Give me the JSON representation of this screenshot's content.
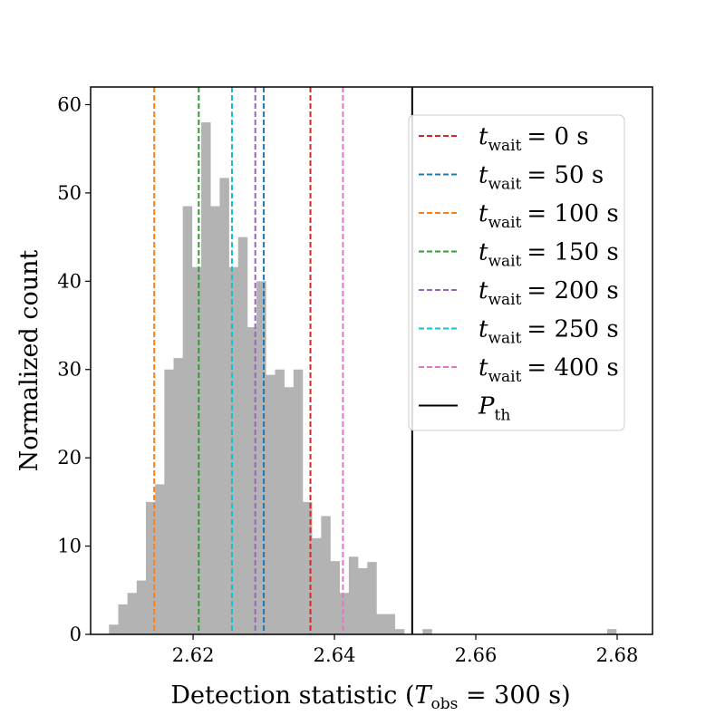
{
  "chart_data": {
    "type": "bar",
    "subtype": "histogram",
    "xlabel": "Detection statistic (T_obs = 300 s)",
    "xlabel_parts": {
      "pre": "Detection statistic (",
      "T": "T",
      "sub": "obs",
      "post": " = 300 s)"
    },
    "ylabel": "Normalized count",
    "xlim": [
      2.6055,
      2.685
    ],
    "ylim": [
      0,
      62
    ],
    "xticks": [
      2.62,
      2.64,
      2.66,
      2.68
    ],
    "xtick_labels": [
      "2.62",
      "2.64",
      "2.66",
      "2.68"
    ],
    "yticks": [
      0,
      10,
      20,
      30,
      40,
      50,
      60
    ],
    "ytick_labels": [
      "0",
      "10",
      "20",
      "30",
      "40",
      "50",
      "60"
    ],
    "bar_color": "#b3b3b3",
    "bin_start": 2.6081,
    "bin_width": 0.001305,
    "counts": [
      1.1,
      3.4,
      4.7,
      6.1,
      15.0,
      17.0,
      30.0,
      31.3,
      48.5,
      41.6,
      58.0,
      48.5,
      51.7,
      41.6,
      45.0,
      34.8,
      40.0,
      29.4,
      30.0,
      28.0,
      30.0,
      15.0,
      10.9,
      13.4,
      8.3,
      4.7,
      8.8,
      7.5,
      8.2,
      2.3,
      2.3,
      0.6,
      0,
      0,
      0.6,
      0,
      0,
      0,
      0,
      0,
      0,
      0,
      0,
      0,
      0,
      0,
      0,
      0,
      0,
      0,
      0,
      0,
      0,
      0,
      0.6
    ],
    "vlines": [
      {
        "name": "t_wait = 0 s",
        "x": 2.6366,
        "color": "#d62728",
        "style": "dashed"
      },
      {
        "name": "t_wait = 50 s",
        "x": 2.63,
        "color": "#1f77b4",
        "style": "dashed"
      },
      {
        "name": "t_wait = 100 s",
        "x": 2.6145,
        "color": "#ff7f0e",
        "style": "dashed"
      },
      {
        "name": "t_wait = 150 s",
        "x": 2.6208,
        "color": "#2ca02c",
        "style": "dashed"
      },
      {
        "name": "t_wait = 200 s",
        "x": 2.6288,
        "color": "#9467bd",
        "style": "dashed"
      },
      {
        "name": "t_wait = 250 s",
        "x": 2.6255,
        "color": "#17becf",
        "style": "dashed"
      },
      {
        "name": "t_wait = 400 s",
        "x": 2.6412,
        "color": "#e377c2",
        "style": "dashed"
      },
      {
        "name": "P_th",
        "x": 2.651,
        "color": "#000000",
        "style": "solid"
      }
    ],
    "legend": {
      "position": "upper-right",
      "entries": [
        {
          "var": "t",
          "sub": "wait",
          "value": "= 0 s"
        },
        {
          "var": "t",
          "sub": "wait",
          "value": "= 50 s"
        },
        {
          "var": "t",
          "sub": "wait",
          "value": "= 100 s"
        },
        {
          "var": "t",
          "sub": "wait",
          "value": "= 150 s"
        },
        {
          "var": "t",
          "sub": "wait",
          "value": "= 200 s"
        },
        {
          "var": "t",
          "sub": "wait",
          "value": "= 250 s"
        },
        {
          "var": "t",
          "sub": "wait",
          "value": "= 400 s"
        },
        {
          "var": "P",
          "sub": "th",
          "value": ""
        }
      ]
    }
  }
}
